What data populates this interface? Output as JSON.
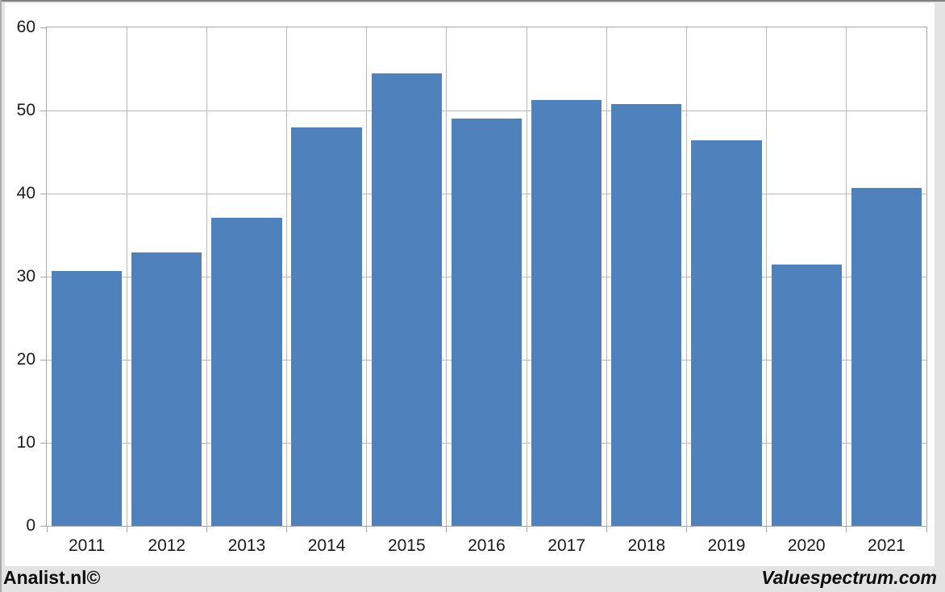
{
  "chart_data": {
    "type": "bar",
    "title": "",
    "categories": [
      "2011",
      "2012",
      "2013",
      "2014",
      "2015",
      "2016",
      "2017",
      "2018",
      "2019",
      "2020",
      "2021"
    ],
    "values": [
      30.7,
      32.9,
      37.1,
      48.0,
      54.5,
      49.0,
      51.3,
      50.8,
      46.4,
      31.5,
      40.7
    ],
    "xlabel": "",
    "ylabel": "",
    "ylim": [
      0,
      60
    ],
    "yticks": [
      0,
      10,
      20,
      30,
      40,
      50,
      60
    ],
    "grid": true,
    "legend_position": "none"
  },
  "footer": {
    "left_text": "Analist.nl©",
    "right_text": "Valuespectrum.com"
  },
  "colors": {
    "bar": "#4f81bd",
    "gridline": "#b9b9b9",
    "axis_border": "#a6a6a6",
    "page_background": "#e3e3e3",
    "plot_background": "#ffffff",
    "text": "#1a1a1a"
  }
}
